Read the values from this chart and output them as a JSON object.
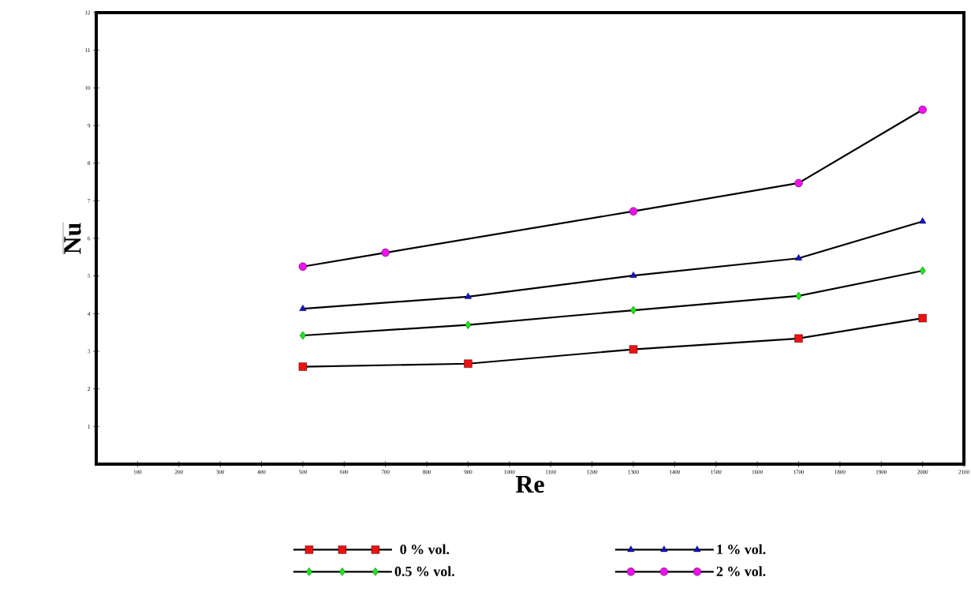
{
  "chart_data": {
    "type": "line",
    "xlabel": "Re",
    "ylabel": "\\overline{\\mathbf{Nu}}",
    "xlim": [
      0,
      2100
    ],
    "xticks": [
      100,
      200,
      300,
      400,
      500,
      600,
      700,
      800,
      900,
      1000,
      1100,
      1200,
      1300,
      1400,
      1500,
      1600,
      1700,
      1800,
      1900,
      2000,
      2100
    ],
    "ylim": [
      0,
      12
    ],
    "yticks": [
      1,
      2,
      3,
      4,
      5,
      6,
      7,
      8,
      9,
      10,
      11,
      12
    ],
    "grid": false,
    "legend": "bottom",
    "line_style": "solid",
    "series": [
      {
        "name": "0 % vol.",
        "color": "#ee1111",
        "marker": "square",
        "x": [
          500,
          900,
          1300,
          1700,
          2000
        ],
        "values": [
          2.59,
          2.67,
          3.05,
          3.34,
          3.88
        ]
      },
      {
        "name": "0.5 % vol.",
        "color": "#11ee11",
        "marker": "diamond",
        "x": [
          500,
          900,
          1300,
          1700,
          2000
        ],
        "values": [
          3.42,
          3.7,
          4.09,
          4.47,
          5.14
        ]
      },
      {
        "name": "1 % vol.",
        "color": "#1111cc",
        "marker": "triangle",
        "x": [
          500,
          900,
          1300,
          1700,
          2000
        ],
        "values": [
          4.13,
          4.45,
          5.01,
          5.47,
          6.45
        ]
      },
      {
        "name": "2 % vol.",
        "color": "#ee11ee",
        "marker": "circle",
        "x": [
          500,
          700,
          1300,
          1700,
          2000
        ],
        "values": [
          5.25,
          5.62,
          6.72,
          7.47,
          9.42
        ]
      }
    ]
  }
}
